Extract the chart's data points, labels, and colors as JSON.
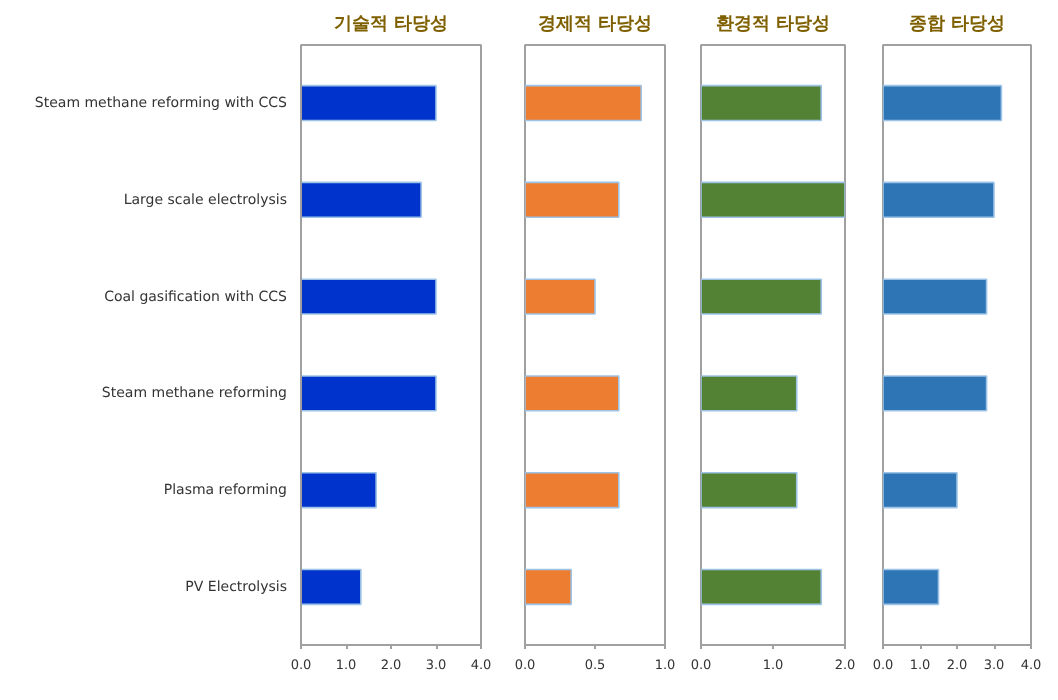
{
  "chart_data": [
    {
      "type": "bar",
      "orientation": "horizontal",
      "title": "기술적 타당성",
      "categories": [
        "Steam methane reforming with CCS",
        "Large scale electrolysis",
        "Coal gasification with CCS",
        "Steam methane reforming",
        "Plasma reforming",
        "PV Electrolysis"
      ],
      "values": [
        3.0,
        2.67,
        3.0,
        3.0,
        1.67,
        1.33
      ],
      "color": "#0033cc",
      "xlim": [
        0,
        4
      ],
      "xticks": [
        {
          "value": 0,
          "label": "0.0"
        },
        {
          "value": 1,
          "label": "1.0"
        },
        {
          "value": 2,
          "label": "2.0"
        },
        {
          "value": 3,
          "label": "3.0"
        },
        {
          "value": 4,
          "label": "4.0"
        }
      ],
      "grid": false
    },
    {
      "type": "bar",
      "orientation": "horizontal",
      "title": "경제적 타당성",
      "values": [
        0.83,
        0.67,
        0.5,
        0.67,
        0.67,
        0.33
      ],
      "color": "#ed7d31",
      "xlim": [
        0,
        1
      ],
      "xticks": [
        {
          "value": 0,
          "label": "0.0"
        },
        0.5,
        {
          "value": 1,
          "label": "1.0"
        }
      ],
      "grid": false,
      "tick_labels": "x"
    },
    {
      "type": "bar",
      "orientation": "horizontal",
      "title": "환경적 타당성",
      "values": [
        1.67,
        2.0,
        1.67,
        1.33,
        1.33,
        1.67
      ],
      "color": "#548235",
      "xlim": [
        0,
        2
      ],
      "xticks": [
        {
          "value": 0,
          "label": "0.0"
        },
        {
          "value": 1,
          "label": "1.0"
        },
        {
          "value": 2,
          "label": "2.0"
        }
      ],
      "grid": false,
      "tick_labels": "x"
    },
    {
      "type": "bar",
      "orientation": "horizontal",
      "title": "종합 타당성",
      "values": [
        3.2,
        3.0,
        2.8,
        2.8,
        2.0,
        1.5
      ],
      "color": "#2e75b6",
      "xlim": [
        0,
        4
      ],
      "xticks": [
        {
          "value": 0,
          "label": "0.0"
        },
        {
          "value": 1,
          "label": "1.0"
        },
        {
          "value": 2,
          "label": "2.0"
        },
        {
          "value": 3,
          "label": "3.0"
        },
        {
          "value": 4,
          "label": "4.0"
        }
      ],
      "grid": false,
      "tick_labels": "x"
    }
  ]
}
